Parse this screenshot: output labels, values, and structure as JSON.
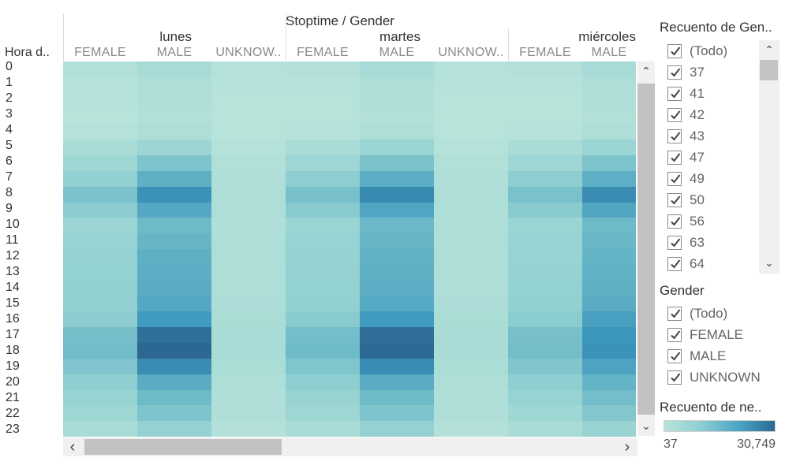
{
  "chart_data": {
    "type": "heatmap",
    "title": "Stoptime / Gender",
    "row_header": "Hora d..",
    "rows": [
      "0",
      "1",
      "2",
      "3",
      "4",
      "5",
      "6",
      "7",
      "8",
      "9",
      "10",
      "11",
      "12",
      "13",
      "14",
      "15",
      "16",
      "17",
      "18",
      "19",
      "20",
      "21",
      "22",
      "23"
    ],
    "days": [
      "lunes",
      "martes",
      "miércoles"
    ],
    "genders": [
      "FEMALE",
      "MALE",
      "UNKNOW.."
    ],
    "column_labels": [
      "FEMALE",
      "MALE",
      "UNKNOW..",
      "FEMALE",
      "MALE",
      "UNKNOW..",
      "FEMALE",
      "MALE"
    ],
    "color_range": [
      37,
      30749
    ],
    "colors": {
      "low": "#b9e4db",
      "mid": "#8dcdd3",
      "midhigh": "#4ba6c3",
      "high": "#2a6a94"
    },
    "values": {
      "lunes": {
        "FEMALE": [
          500,
          300,
          250,
          200,
          300,
          1200,
          2500,
          4500,
          8500,
          5500,
          3000,
          3500,
          4000,
          4200,
          4300,
          4500,
          5500,
          9500,
          10500,
          7500,
          4800,
          3500,
          2500,
          1200
        ],
        "MALE": [
          1500,
          900,
          700,
          500,
          900,
          3000,
          8000,
          14000,
          22000,
          16000,
          11000,
          12500,
          14000,
          14500,
          15000,
          16000,
          20000,
          29000,
          30749,
          23000,
          15000,
          11000,
          8000,
          4000
        ],
        "UNKNOW..": [
          300,
          250,
          200,
          150,
          200,
          300,
          500,
          700,
          900,
          800,
          700,
          800,
          900,
          900,
          900,
          1000,
          1100,
          1300,
          1300,
          1100,
          900,
          700,
          600,
          400
        ]
      },
      "martes": {
        "FEMALE": [
          400,
          250,
          200,
          180,
          250,
          1300,
          2800,
          5000,
          9000,
          6000,
          3200,
          3500,
          3800,
          4000,
          4200,
          4500,
          5800,
          10000,
          11000,
          7800,
          5000,
          3600,
          2600,
          1200
        ],
        "MALE": [
          1400,
          800,
          600,
          500,
          900,
          3200,
          8500,
          14500,
          23500,
          17000,
          11500,
          12500,
          13500,
          14000,
          14500,
          15500,
          20000,
          29500,
          30500,
          22500,
          15000,
          11000,
          8000,
          4000
        ],
        "UNKNOW..": [
          300,
          250,
          200,
          150,
          200,
          300,
          500,
          700,
          900,
          800,
          700,
          800,
          900,
          900,
          900,
          1000,
          1100,
          1300,
          1300,
          1100,
          900,
          700,
          600,
          400
        ]
      },
      "miércoles": {
        "FEMALE": [
          400,
          250,
          200,
          180,
          250,
          1300,
          2800,
          5000,
          8800,
          5800,
          3100,
          3400,
          3700,
          3900,
          4100,
          4400,
          5600,
          9200,
          9800,
          7200,
          4800,
          3500,
          2500,
          1200
        ],
        "MALE": [
          1400,
          800,
          600,
          500,
          900,
          3200,
          8200,
          14200,
          23000,
          16500,
          11200,
          12000,
          13000,
          13500,
          14000,
          15000,
          18500,
          21000,
          21500,
          17500,
          13000,
          10000,
          7000,
          3600
        ]
      }
    }
  },
  "scroll": {
    "up": "⌃",
    "down": "⌄",
    "left": "‹",
    "right": "›"
  },
  "filters": {
    "recuento_gen": {
      "title": "Recuento de Gen..",
      "items": [
        "(Todo)",
        "37",
        "41",
        "42",
        "43",
        "47",
        "49",
        "50",
        "56",
        "63",
        "64"
      ]
    },
    "gender": {
      "title": "Gender",
      "items": [
        "(Todo)",
        "FEMALE",
        "MALE",
        "UNKNOWN"
      ]
    }
  },
  "legend": {
    "title": "Recuento de ne..",
    "min_label": "37",
    "max_label": "30,749"
  }
}
